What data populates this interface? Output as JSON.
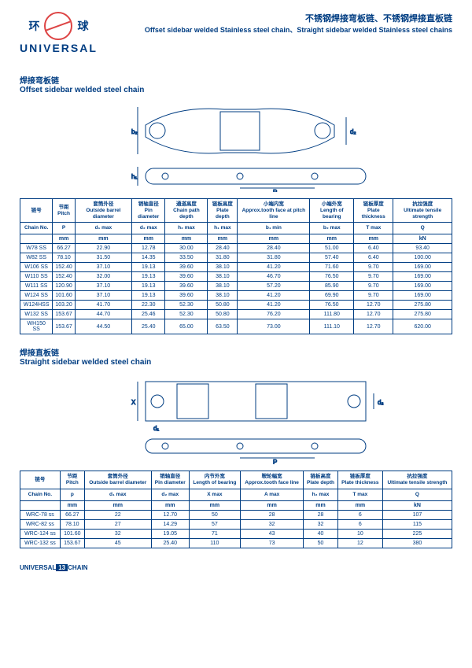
{
  "brand": {
    "zh_left": "环",
    "zh_right": "球",
    "en": "UNIVERSAL",
    "logo_color": "#d44"
  },
  "title": {
    "zh": "不锈钢焊接弯板链、不锈钢焊接直板链",
    "en": "Offset sidebar welded Stainless steel chain、Straight sidebar welded Stainless steel chains"
  },
  "section1": {
    "zh": "焊接弯板链",
    "en": "Offset sidebar welded steel chain"
  },
  "section2": {
    "zh": "焊接直板链",
    "en": "Straight sidebar welded steel chain"
  },
  "table1": {
    "headers_row1": [
      "链号",
      "节距",
      "套筒外径",
      "销轴直径",
      "通道高度",
      "链板高度",
      "小端内宽",
      "小端外宽",
      "链板厚度",
      "抗拉强度"
    ],
    "headers_row1_en": [
      "",
      "Pitch",
      "Outside barrel diameter",
      "Pin diameter",
      "Chain path depth",
      "Plate depth",
      "Approx.tooth face at pitch line",
      "Length of bearing",
      "Plate thickness",
      "Ultimate tensile strength"
    ],
    "headers_row2": [
      "Chain No.",
      "P",
      "d₁ max",
      "d₂ max",
      "h₂ max",
      "h₁ max",
      "b₁ min",
      "b₂ max",
      "T max",
      "Q"
    ],
    "units": [
      "",
      "mm",
      "mm",
      "mm",
      "mm",
      "mm",
      "mm",
      "mm",
      "mm",
      "kN"
    ],
    "rows": [
      [
        "W78 SS",
        "66.27",
        "22.90",
        "12.78",
        "30.00",
        "28.40",
        "28.40",
        "51.00",
        "6.40",
        "93.40"
      ],
      [
        "W82 SS",
        "78.10",
        "31.50",
        "14.35",
        "33.50",
        "31.80",
        "31.80",
        "57.40",
        "6.40",
        "100.00"
      ],
      [
        "W106 SS",
        "152.40",
        "37.10",
        "19.13",
        "39.60",
        "38.10",
        "41.20",
        "71.60",
        "9.70",
        "169.00"
      ],
      [
        "W110 SS",
        "152.40",
        "32.00",
        "19.13",
        "39.60",
        "38.10",
        "46.70",
        "76.50",
        "9.70",
        "169.00"
      ],
      [
        "W111 SS",
        "120.90",
        "37.10",
        "19.13",
        "39.60",
        "38.10",
        "57.20",
        "85.90",
        "9.70",
        "169.00"
      ],
      [
        "W124 SS",
        "101.60",
        "37.10",
        "19.13",
        "39.60",
        "38.10",
        "41.20",
        "69.90",
        "9.70",
        "169.00"
      ],
      [
        "W124HSS",
        "103.20",
        "41.70",
        "22.30",
        "52.30",
        "50.80",
        "41.20",
        "76.50",
        "12.70",
        "275.80"
      ],
      [
        "W132 SS",
        "153.67",
        "44.70",
        "25.46",
        "52.30",
        "50.80",
        "76.20",
        "111.80",
        "12.70",
        "275.80"
      ],
      [
        "WH150 SS",
        "153.67",
        "44.50",
        "25.40",
        "65.00",
        "63.50",
        "73.00",
        "111.10",
        "12.70",
        "620.00"
      ]
    ]
  },
  "table2": {
    "headers_row1": [
      "链号",
      "节距",
      "套筒外径",
      "销轴直径",
      "内节外宽",
      "鞍轮幅宽",
      "链板高度",
      "链板厚度",
      "抗拉强度"
    ],
    "headers_row1_en": [
      "",
      "Pitch",
      "Outside barrel diameter",
      "Pin diameter",
      "Length of bearing",
      "Approx.tooth face line",
      "Plate depth",
      "Plate thickness",
      "Ultimate tensile strength"
    ],
    "headers_row2": [
      "Chain No.",
      "p",
      "d₁ max",
      "d₂ max",
      "X max",
      "A max",
      "h₂ max",
      "T max",
      "Q"
    ],
    "units": [
      "",
      "mm",
      "mm",
      "mm",
      "mm",
      "mm",
      "mm",
      "mm",
      "kN"
    ],
    "rows": [
      [
        "WRC-78 ss",
        "66.27",
        "22",
        "12.70",
        "50",
        "28",
        "28",
        "6",
        "107"
      ],
      [
        "WRC-82 ss",
        "78.10",
        "27",
        "14.29",
        "57",
        "32",
        "32",
        "6",
        "115"
      ],
      [
        "WRC-124 ss",
        "101.60",
        "32",
        "19.05",
        "71",
        "43",
        "40",
        "10",
        "225"
      ],
      [
        "WRC-132 ss",
        "153.67",
        "45",
        "25.40",
        "110",
        "73",
        "50",
        "12",
        "380"
      ]
    ]
  },
  "footer": {
    "left": "UNIVERSAL",
    "page": "13",
    "right": "CHAIN"
  },
  "colors": {
    "primary": "#003d82",
    "accent": "#d44",
    "border": "#003d82"
  }
}
